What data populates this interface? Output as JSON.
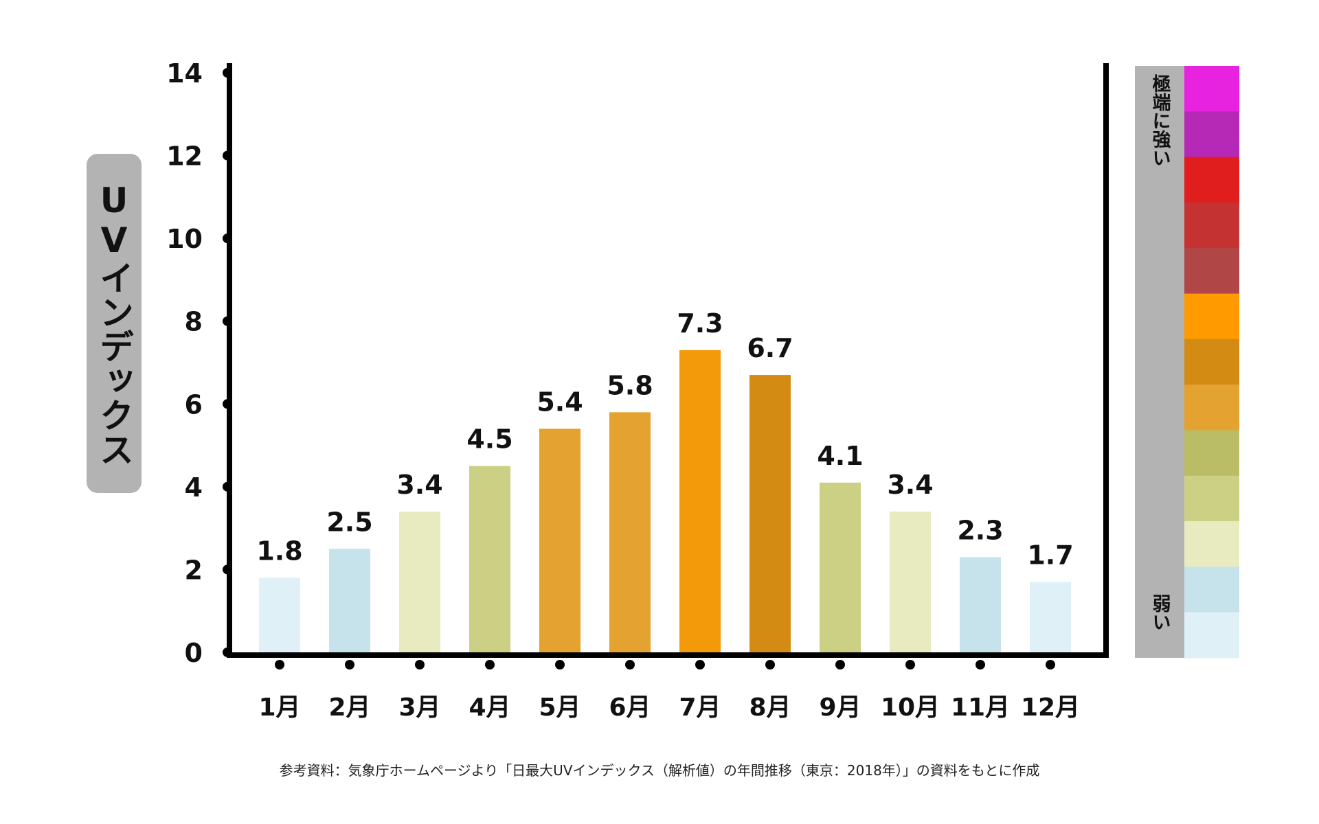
{
  "chart_data": {
    "type": "bar",
    "title": "",
    "ylabel": "UVインデックス",
    "xlabel": "",
    "ylim": [
      0,
      14
    ],
    "yticks": [
      "0",
      "2",
      "4",
      "6",
      "8",
      "10",
      "12",
      "14"
    ],
    "categories": [
      "1月",
      "2月",
      "3月",
      "4月",
      "5月",
      "6月",
      "7月",
      "8月",
      "9月",
      "10月",
      "11月",
      "12月"
    ],
    "values": [
      1.8,
      2.5,
      3.4,
      4.5,
      5.4,
      5.8,
      7.3,
      6.7,
      4.1,
      3.4,
      2.3,
      1.7
    ],
    "value_labels": [
      "1.8",
      "2.5",
      "3.4",
      "4.5",
      "5.4",
      "5.8",
      "7.3",
      "6.7",
      "4.1",
      "3.4",
      "2.3",
      "1.7"
    ],
    "bar_colors": [
      "#dff1f7",
      "#c6e2ea",
      "#e8ebbf",
      "#ccd085",
      "#e4a230",
      "#e4a230",
      "#f39a0a",
      "#d48b14",
      "#ccd085",
      "#e8ebbf",
      "#c6e2ea",
      "#dff1f7"
    ],
    "grid": false,
    "legend": {
      "position": "right",
      "top_label": "極端に強い",
      "bottom_label": "弱い",
      "colors_top_to_bottom": [
        "#e723df",
        "#b628b6",
        "#e01e1e",
        "#c43232",
        "#b04646",
        "#ff9a00",
        "#d48b14",
        "#e4a230",
        "#babd66",
        "#ccd085",
        "#e8ebbf",
        "#c6e2ea",
        "#dff1f7"
      ]
    }
  },
  "source_note": "参考資料：気象庁ホームページより「日最大UVインデックス（解析値）の年間推移（東京：2018年）」の資料をもとに作成"
}
